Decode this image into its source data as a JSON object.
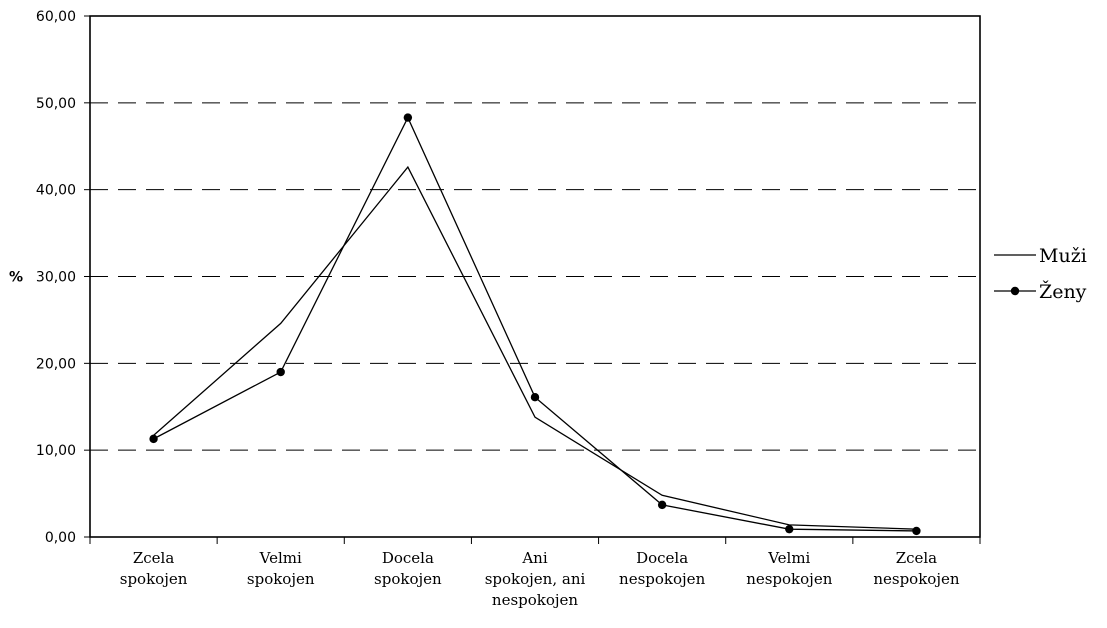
{
  "chart_data": {
    "type": "line",
    "categories": [
      [
        "Zcela",
        "spokojen"
      ],
      [
        "Velmi",
        "spokojen"
      ],
      [
        "Docela",
        "spokojen"
      ],
      [
        "Ani",
        "spokojen, ani",
        "nespokojen"
      ],
      [
        "Docela",
        "nespokojen"
      ],
      [
        "Velmi",
        "nespokojen"
      ],
      [
        "Zcela",
        "nespokojen"
      ]
    ],
    "series": [
      {
        "name": "Muži",
        "values": [
          11.7,
          24.6,
          42.6,
          13.8,
          4.8,
          1.4,
          0.9
        ],
        "marker": "none",
        "color": "#000000"
      },
      {
        "name": "Ženy",
        "values": [
          11.3,
          19.0,
          48.3,
          16.1,
          3.7,
          0.9,
          0.7
        ],
        "marker": "circle",
        "color": "#000000"
      }
    ],
    "ylabel": "%",
    "ylim": [
      0,
      60
    ],
    "yticks": [
      "0,00",
      "10,00",
      "20,00",
      "30,00",
      "40,00",
      "50,00",
      "60,00"
    ],
    "grid": "horizontal-dashed",
    "legend": "right"
  }
}
